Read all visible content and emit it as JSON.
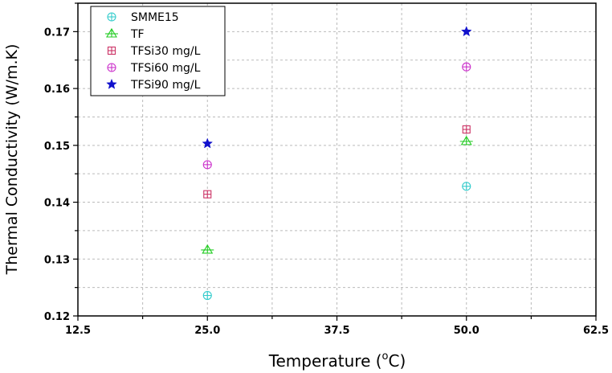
{
  "chart_data": {
    "type": "scatter",
    "title": "",
    "xlabel": "Temperature (",
    "xlabel_sup": "o",
    "xlabel_suffix": "C)",
    "ylabel": "Thermal Conductivity (W/m.K)",
    "xlim": [
      12.5,
      62.5
    ],
    "ylim": [
      0.12,
      0.175
    ],
    "x_ticks": [
      "12.5",
      "25.0",
      "37.5",
      "50.0",
      "62.5"
    ],
    "x_tick_values": [
      12.5,
      25.0,
      37.5,
      50.0,
      62.5
    ],
    "y_ticks": [
      "0.12",
      "0.13",
      "0.14",
      "0.15",
      "0.16",
      "0.17"
    ],
    "y_tick_values": [
      0.12,
      0.13,
      0.14,
      0.15,
      0.16,
      0.17
    ],
    "grid": true,
    "legend_position": "top-left",
    "series": [
      {
        "name": "SMME15",
        "marker": "circle-plus",
        "color": "#33cccc",
        "x": [
          25.0,
          50.0
        ],
        "y": [
          0.1236,
          0.1428
        ]
      },
      {
        "name": "TF",
        "marker": "triangle-plus",
        "color": "#22cc22",
        "x": [
          25.0,
          50.0
        ],
        "y": [
          0.1316,
          0.1507
        ]
      },
      {
        "name": "TFSi30 mg/L",
        "marker": "square-plus",
        "color": "#cc3366",
        "x": [
          25.0,
          50.0
        ],
        "y": [
          0.1414,
          0.1528
        ]
      },
      {
        "name": "TFSi60 mg/L",
        "marker": "circle-plus",
        "color": "#cc33cc",
        "x": [
          25.0,
          50.0
        ],
        "y": [
          0.1466,
          0.1638
        ]
      },
      {
        "name": "TFSi90 mg/L",
        "marker": "star",
        "color": "#1111cc",
        "x": [
          25.0,
          50.0
        ],
        "y": [
          0.1503,
          0.17
        ]
      }
    ]
  }
}
